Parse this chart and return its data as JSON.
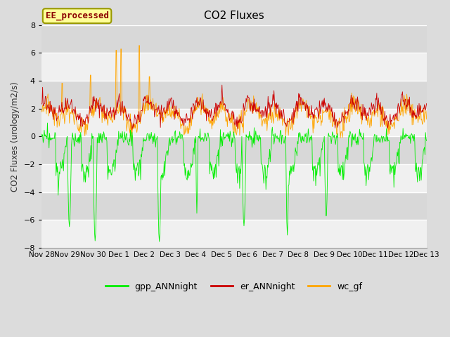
{
  "title": "CO2 Fluxes",
  "ylabel": "CO2 Fluxes (urology/m2/s)",
  "ylim": [
    -8,
    8
  ],
  "yticks": [
    -8,
    -6,
    -4,
    -2,
    0,
    2,
    4,
    6,
    8
  ],
  "annotation": "EE_processed",
  "legend": [
    "gpp_ANNnight",
    "er_ANNnight",
    "wc_gf"
  ],
  "colors": {
    "gpp_ANNnight": "#00EE00",
    "er_ANNnight": "#CC0000",
    "wc_gf": "#FFA500"
  },
  "bg_color": "#DCDCDC",
  "plot_bg_color": "#DCDCDC",
  "n_days": 15,
  "pts_per_day": 48,
  "xtick_labels": [
    "Nov 28",
    "Nov 29",
    "Nov 30",
    "Dec 1",
    "Dec 2",
    "Dec 3",
    "Dec 4",
    "Dec 5",
    "Dec 6",
    "Dec 7",
    "Dec 8",
    "Dec 9",
    "Dec 10",
    "Dec 11",
    "Dec 12",
    "Dec 13"
  ],
  "band_colors": [
    "#D8D8D8",
    "#F0F0F0"
  ]
}
